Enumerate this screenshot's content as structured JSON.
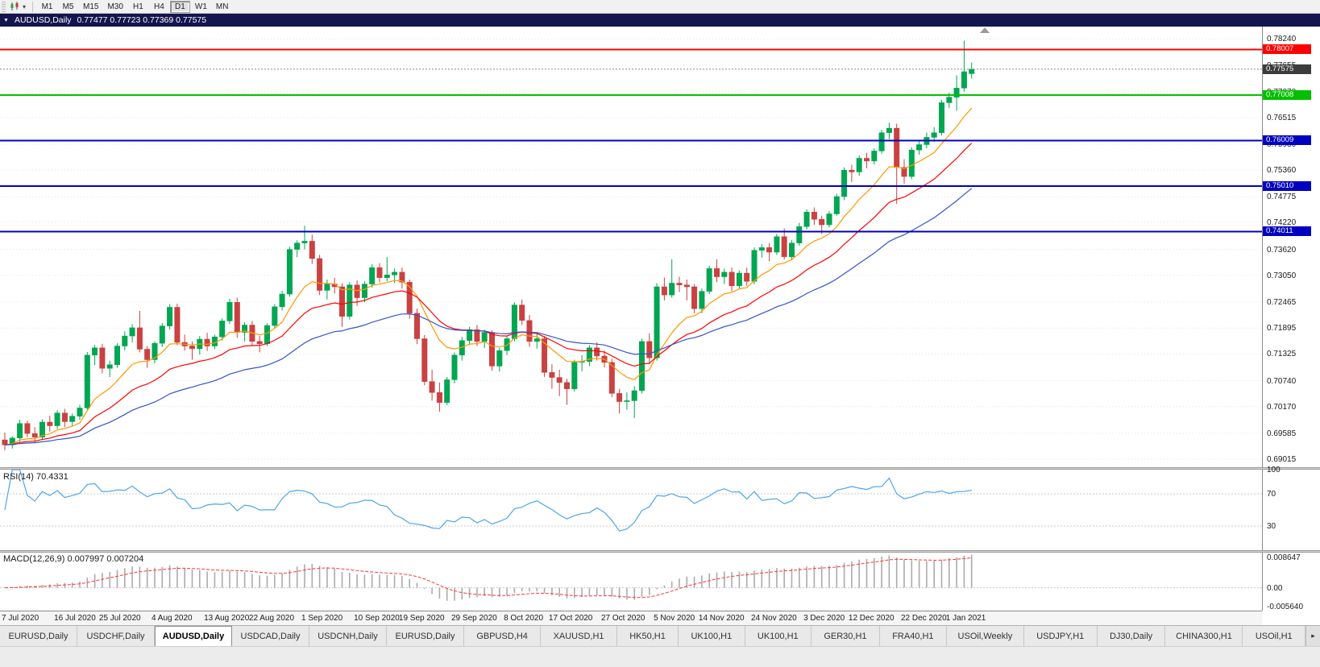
{
  "toolbar": {
    "caret_icon": "▾",
    "timeframes": [
      "M1",
      "M5",
      "M15",
      "M30",
      "H1",
      "H4",
      "D1",
      "W1",
      "MN"
    ],
    "active_timeframe": "D1"
  },
  "titlebar": {
    "menu_icon": "▼",
    "title": "AUDUSD,Daily",
    "ohlc_text": "0.77477 0.77723 0.77369 0.77575"
  },
  "rsi": {
    "label": "RSI(14) 70.4331",
    "period": 14,
    "value": 70.4331,
    "scale_labels": [
      "100",
      "70",
      "30"
    ],
    "scale_values": [
      100,
      70,
      30
    ],
    "levels": [
      70,
      30
    ]
  },
  "macd": {
    "label": "MACD(12,26,9) 0.007997 0.007204",
    "fast": 12,
    "slow": 26,
    "signal_period": 9,
    "value": 0.007997,
    "signal_value": 0.007204,
    "scale_labels": [
      "0.008647",
      "0.00",
      "-0.005640"
    ],
    "scale_values": [
      0.008647,
      0,
      -0.00564
    ]
  },
  "tabs": {
    "active_index": 2,
    "scroll_right_icon": "▸",
    "items": [
      "EURUSD,Daily",
      "USDCHF,Daily",
      "AUDUSD,Daily",
      "USDCAD,Daily",
      "USDCNH,Daily",
      "EURUSD,Daily",
      "GBPUSD,H4",
      "XAUUSD,H1",
      "HK50,H1",
      "UK100,H1",
      "UK100,H1",
      "GER30,H1",
      "FRA40,H1",
      "USOil,Weekly",
      "USDJPY,H1",
      "DJ30,Daily",
      "CHINA300,H1",
      "USOil,H1"
    ]
  },
  "colors": {
    "bull": "#00A651",
    "bear": "#C94141",
    "ma_fast": "#FF9900",
    "ma_mid": "#FF0000",
    "ma_slow": "#3355CC",
    "rsi_line": "#4DA6E8",
    "macd_hist": "#ABABAB",
    "macd_signal": "#FF3333",
    "grid": "#E4E4E4",
    "hline_red": "#FF0000",
    "hline_green": "#00C000",
    "hline_blue": "#0000C0",
    "current_badge": "#3C3C3C",
    "titlebar_bg": "#14144E"
  },
  "chart_data": {
    "type": "candlestick",
    "symbol": "AUDUSD",
    "timeframe": "Daily",
    "current_bar": {
      "open": 0.77477,
      "high": 0.77723,
      "low": 0.77369,
      "close": 0.77575
    },
    "current_price": 0.77575,
    "current_price_label": "0.77575",
    "main_range": [
      0.6884,
      0.7851
    ],
    "macd_range": [
      -0.0063,
      0.0097
    ],
    "price_ticks": [
      "0.78240",
      "0.77655",
      "0.77070",
      "0.76515",
      "0.75930",
      "0.75360",
      "0.74775",
      "0.74220",
      "0.73620",
      "0.73050",
      "0.72465",
      "0.71895",
      "0.71325",
      "0.70740",
      "0.70170",
      "0.69585",
      "0.69015"
    ],
    "hlines": [
      {
        "price": 0.78007,
        "label": "0.78007",
        "color_key": "hline_red",
        "width": 2
      },
      {
        "price": 0.77008,
        "label": "0.77008",
        "color_key": "hline_green",
        "width": 2
      },
      {
        "price": 0.76009,
        "label": "0.76009",
        "color_key": "hline_blue",
        "width": 2
      },
      {
        "price": 0.7501,
        "label": "0.75010",
        "color_key": "hline_blue",
        "width": 2
      },
      {
        "price": 0.74011,
        "label": "0.74011",
        "color_key": "hline_blue",
        "width": 2
      }
    ],
    "overlays": [
      {
        "name": "ma-fast",
        "period": 10,
        "color_key": "ma_fast"
      },
      {
        "name": "ma-mid",
        "period": 21,
        "color_key": "ma_mid"
      },
      {
        "name": "ma-slow",
        "period": 40,
        "color_key": "ma_slow"
      }
    ],
    "indicators": {
      "rsi_period": 14,
      "macd_params": [
        12,
        26,
        9
      ]
    },
    "time_axis": {
      "labels": [
        "7 Jul 2020",
        "16 Jul 2020",
        "25 Jul 2020",
        "4 Aug 2020",
        "13 Aug 2020",
        "22 Aug 2020",
        "1 Sep 2020",
        "10 Sep 2020",
        "19 Sep 2020",
        "29 Sep 2020",
        "8 Oct 2020",
        "17 Oct 2020",
        "27 Oct 2020",
        "5 Nov 2020",
        "14 Nov 2020",
        "24 Nov 2020",
        "3 Dec 2020",
        "12 Dec 2020",
        "22 Dec 2020",
        "1 Jan 2021"
      ],
      "indices": [
        0,
        7,
        13,
        20,
        27,
        33,
        40,
        47,
        53,
        60,
        67,
        73,
        80,
        87,
        93,
        100,
        107,
        113,
        120,
        126
      ]
    },
    "candles": [
      [
        0.6944,
        0.696,
        0.6921,
        0.6933
      ],
      [
        0.6933,
        0.6952,
        0.6925,
        0.6948
      ],
      [
        0.6948,
        0.6988,
        0.694,
        0.698
      ],
      [
        0.698,
        0.6986,
        0.695,
        0.6958
      ],
      [
        0.6958,
        0.6972,
        0.6938,
        0.695
      ],
      [
        0.695,
        0.6989,
        0.6944,
        0.6983
      ],
      [
        0.6983,
        0.6997,
        0.6962,
        0.6975
      ],
      [
        0.6975,
        0.7009,
        0.6968,
        0.7003
      ],
      [
        0.7003,
        0.7012,
        0.6972,
        0.6984
      ],
      [
        0.6984,
        0.7002,
        0.6975,
        0.6996
      ],
      [
        0.6996,
        0.7021,
        0.6988,
        0.7014
      ],
      [
        0.7014,
        0.7137,
        0.701,
        0.713
      ],
      [
        0.713,
        0.7152,
        0.7108,
        0.7146
      ],
      [
        0.7146,
        0.7155,
        0.709,
        0.7101
      ],
      [
        0.7101,
        0.7118,
        0.7082,
        0.7109
      ],
      [
        0.7109,
        0.7156,
        0.7102,
        0.715
      ],
      [
        0.715,
        0.7182,
        0.714,
        0.7172
      ],
      [
        0.7172,
        0.7198,
        0.7158,
        0.719
      ],
      [
        0.719,
        0.7227,
        0.7136,
        0.7143
      ],
      [
        0.7143,
        0.715,
        0.7102,
        0.712
      ],
      [
        0.712,
        0.716,
        0.7112,
        0.7156
      ],
      [
        0.7156,
        0.72,
        0.7148,
        0.7194
      ],
      [
        0.7194,
        0.7242,
        0.7186,
        0.7235
      ],
      [
        0.7235,
        0.7243,
        0.7152,
        0.7158
      ],
      [
        0.7158,
        0.7175,
        0.714,
        0.715
      ],
      [
        0.715,
        0.716,
        0.712,
        0.7144
      ],
      [
        0.7144,
        0.7172,
        0.7131,
        0.7165
      ],
      [
        0.7165,
        0.7179,
        0.7139,
        0.715
      ],
      [
        0.715,
        0.7175,
        0.7143,
        0.717
      ],
      [
        0.717,
        0.7211,
        0.7162,
        0.7205
      ],
      [
        0.7205,
        0.7254,
        0.7198,
        0.7246
      ],
      [
        0.7246,
        0.7256,
        0.7168,
        0.718
      ],
      [
        0.718,
        0.7202,
        0.716,
        0.7196
      ],
      [
        0.7196,
        0.7205,
        0.715,
        0.716
      ],
      [
        0.716,
        0.7172,
        0.7136,
        0.7155
      ],
      [
        0.7155,
        0.72,
        0.715,
        0.7195
      ],
      [
        0.7195,
        0.7242,
        0.719,
        0.7236
      ],
      [
        0.7236,
        0.7271,
        0.7228,
        0.7264
      ],
      [
        0.7264,
        0.7368,
        0.7258,
        0.7362
      ],
      [
        0.7362,
        0.7382,
        0.7345,
        0.7376
      ],
      [
        0.7376,
        0.7414,
        0.7362,
        0.738
      ],
      [
        0.738,
        0.7394,
        0.733,
        0.7342
      ],
      [
        0.7342,
        0.735,
        0.7262,
        0.7272
      ],
      [
        0.7272,
        0.7296,
        0.7252,
        0.7286
      ],
      [
        0.7286,
        0.73,
        0.7265,
        0.728
      ],
      [
        0.728,
        0.7288,
        0.7192,
        0.7215
      ],
      [
        0.7215,
        0.729,
        0.7208,
        0.7284
      ],
      [
        0.7284,
        0.7294,
        0.7238,
        0.7256
      ],
      [
        0.7256,
        0.7292,
        0.7246,
        0.7286
      ],
      [
        0.7286,
        0.733,
        0.7278,
        0.7322
      ],
      [
        0.7322,
        0.7332,
        0.729,
        0.73
      ],
      [
        0.73,
        0.7345,
        0.7292,
        0.7306
      ],
      [
        0.7306,
        0.732,
        0.7288,
        0.7312
      ],
      [
        0.7312,
        0.7322,
        0.7276,
        0.729
      ],
      [
        0.729,
        0.7296,
        0.721,
        0.7222
      ],
      [
        0.7222,
        0.7232,
        0.7154,
        0.7166
      ],
      [
        0.7166,
        0.7174,
        0.7064,
        0.7072
      ],
      [
        0.7072,
        0.7098,
        0.703,
        0.7048
      ],
      [
        0.7048,
        0.707,
        0.7006,
        0.7026
      ],
      [
        0.7026,
        0.7082,
        0.702,
        0.7076
      ],
      [
        0.7076,
        0.7136,
        0.7068,
        0.713
      ],
      [
        0.713,
        0.717,
        0.7118,
        0.7162
      ],
      [
        0.7162,
        0.7192,
        0.7152,
        0.7186
      ],
      [
        0.7186,
        0.7196,
        0.715,
        0.716
      ],
      [
        0.716,
        0.7186,
        0.7146,
        0.718
      ],
      [
        0.718,
        0.7184,
        0.7096,
        0.7106
      ],
      [
        0.7106,
        0.7146,
        0.7094,
        0.714
      ],
      [
        0.714,
        0.7172,
        0.713,
        0.7166
      ],
      [
        0.7166,
        0.7246,
        0.716,
        0.724
      ],
      [
        0.724,
        0.7252,
        0.7196,
        0.7206
      ],
      [
        0.7206,
        0.7218,
        0.7148,
        0.716
      ],
      [
        0.716,
        0.718,
        0.7144,
        0.7166
      ],
      [
        0.7166,
        0.7172,
        0.7082,
        0.7092
      ],
      [
        0.7092,
        0.711,
        0.7056,
        0.7081
      ],
      [
        0.7081,
        0.7098,
        0.704,
        0.707
      ],
      [
        0.707,
        0.7078,
        0.7021,
        0.7056
      ],
      [
        0.7056,
        0.712,
        0.705,
        0.7114
      ],
      [
        0.7114,
        0.713,
        0.7094,
        0.7116
      ],
      [
        0.7116,
        0.7152,
        0.7106,
        0.7146
      ],
      [
        0.7146,
        0.7158,
        0.7118,
        0.7128
      ],
      [
        0.7128,
        0.714,
        0.7103,
        0.7114
      ],
      [
        0.7114,
        0.7122,
        0.7038,
        0.7046
      ],
      [
        0.7046,
        0.7056,
        0.7002,
        0.7028
      ],
      [
        0.7028,
        0.7048,
        0.701,
        0.703
      ],
      [
        0.703,
        0.7062,
        0.6992,
        0.7052
      ],
      [
        0.7052,
        0.7166,
        0.7046,
        0.716
      ],
      [
        0.716,
        0.7178,
        0.711,
        0.7124
      ],
      [
        0.7124,
        0.7288,
        0.7118,
        0.728
      ],
      [
        0.728,
        0.73,
        0.725,
        0.7262
      ],
      [
        0.7262,
        0.734,
        0.7256,
        0.7288
      ],
      [
        0.7288,
        0.7302,
        0.7268,
        0.7284
      ],
      [
        0.7284,
        0.7296,
        0.725,
        0.728
      ],
      [
        0.728,
        0.7286,
        0.7222,
        0.7232
      ],
      [
        0.7232,
        0.7276,
        0.7222,
        0.727
      ],
      [
        0.727,
        0.7326,
        0.7264,
        0.732
      ],
      [
        0.732,
        0.734,
        0.729,
        0.7302
      ],
      [
        0.7302,
        0.732,
        0.7286,
        0.7312
      ],
      [
        0.7312,
        0.7322,
        0.727,
        0.7282
      ],
      [
        0.7282,
        0.7316,
        0.7276,
        0.731
      ],
      [
        0.731,
        0.7322,
        0.7282,
        0.7292
      ],
      [
        0.7292,
        0.7366,
        0.7286,
        0.736
      ],
      [
        0.736,
        0.7374,
        0.7344,
        0.7366
      ],
      [
        0.7366,
        0.7376,
        0.7336,
        0.7356
      ],
      [
        0.7356,
        0.7396,
        0.735,
        0.739
      ],
      [
        0.739,
        0.7408,
        0.734,
        0.7346
      ],
      [
        0.7346,
        0.7382,
        0.7338,
        0.7376
      ],
      [
        0.7376,
        0.742,
        0.737,
        0.7412
      ],
      [
        0.7412,
        0.745,
        0.7406,
        0.7444
      ],
      [
        0.7444,
        0.7454,
        0.7416,
        0.7428
      ],
      [
        0.7428,
        0.7436,
        0.7396,
        0.7416
      ],
      [
        0.7416,
        0.7446,
        0.741,
        0.744
      ],
      [
        0.744,
        0.7484,
        0.7436,
        0.7478
      ],
      [
        0.7478,
        0.7542,
        0.747,
        0.7536
      ],
      [
        0.7536,
        0.7548,
        0.751,
        0.7532
      ],
      [
        0.7532,
        0.7568,
        0.7524,
        0.7562
      ],
      [
        0.7562,
        0.7574,
        0.754,
        0.7556
      ],
      [
        0.7556,
        0.7584,
        0.7548,
        0.7578
      ],
      [
        0.7578,
        0.7624,
        0.7572,
        0.7618
      ],
      [
        0.7618,
        0.764,
        0.7604,
        0.7628
      ],
      [
        0.7628,
        0.7638,
        0.7462,
        0.7542
      ],
      [
        0.7542,
        0.756,
        0.7506,
        0.7522
      ],
      [
        0.7522,
        0.7586,
        0.7516,
        0.758
      ],
      [
        0.758,
        0.76,
        0.757,
        0.7592
      ],
      [
        0.7592,
        0.7618,
        0.7584,
        0.7608
      ],
      [
        0.7608,
        0.763,
        0.7598,
        0.7618
      ],
      [
        0.7618,
        0.769,
        0.7612,
        0.7684
      ],
      [
        0.7684,
        0.7706,
        0.7672,
        0.7696
      ],
      [
        0.7696,
        0.7744,
        0.7666,
        0.7716
      ],
      [
        0.7716,
        0.782,
        0.7708,
        0.7752
      ],
      [
        0.77477,
        0.77723,
        0.77369,
        0.77575
      ]
    ]
  }
}
